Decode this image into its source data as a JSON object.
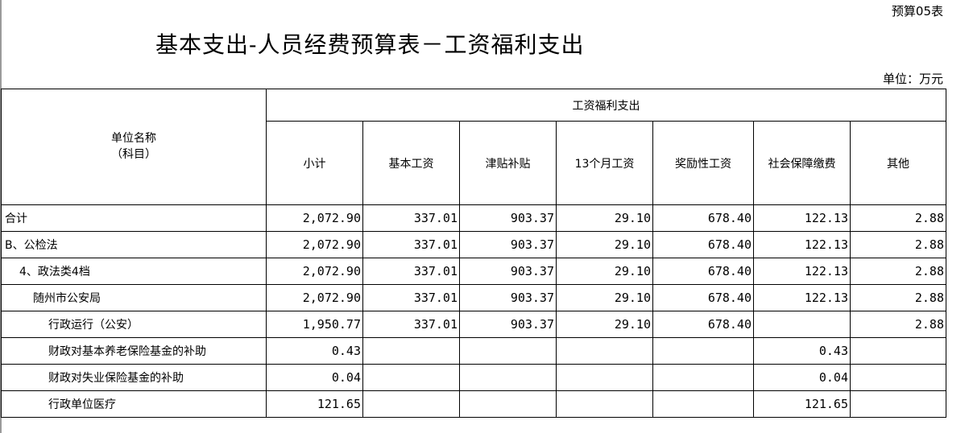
{
  "form_code": "预算05表",
  "title": "基本支出-人员经费预算表－工资福利支出",
  "unit": "单位：万元",
  "header": {
    "name_col": "单位名称",
    "name_col_sub": "（科目）",
    "group": "工资福利支出",
    "columns": [
      "小计",
      "基本工资",
      "津贴补贴",
      "13个月工资",
      "奖励性工资",
      "社会保障缴费",
      "其他"
    ]
  },
  "rows": [
    {
      "name": "合计",
      "level": 0,
      "values": [
        "2,072.90",
        "337.01",
        "903.37",
        "29.10",
        "678.40",
        "122.13",
        "2.88"
      ]
    },
    {
      "name": "B、公检法",
      "level": 0,
      "values": [
        "2,072.90",
        "337.01",
        "903.37",
        "29.10",
        "678.40",
        "122.13",
        "2.88"
      ]
    },
    {
      "name": "4、政法类4档",
      "level": 1,
      "values": [
        "2,072.90",
        "337.01",
        "903.37",
        "29.10",
        "678.40",
        "122.13",
        "2.88"
      ]
    },
    {
      "name": "随州市公安局",
      "level": 2,
      "values": [
        "2,072.90",
        "337.01",
        "903.37",
        "29.10",
        "678.40",
        "122.13",
        "2.88"
      ]
    },
    {
      "name": "行政运行（公安）",
      "level": 3,
      "values": [
        "1,950.77",
        "337.01",
        "903.37",
        "29.10",
        "678.40",
        "",
        "2.88"
      ]
    },
    {
      "name": "财政对基本养老保险基金的补助",
      "level": 3,
      "values": [
        "0.43",
        "",
        "",
        "",
        "",
        "0.43",
        ""
      ]
    },
    {
      "name": "财政对失业保险基金的补助",
      "level": 3,
      "values": [
        "0.04",
        "",
        "",
        "",
        "",
        "0.04",
        ""
      ]
    },
    {
      "name": "行政单位医疗",
      "level": 3,
      "values": [
        "121.65",
        "",
        "",
        "",
        "",
        "121.65",
        ""
      ]
    }
  ]
}
